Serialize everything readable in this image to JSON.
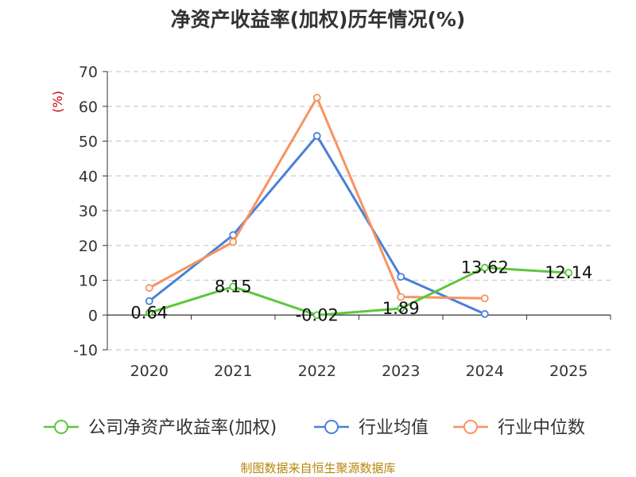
{
  "chart_data": {
    "type": "line",
    "title": "净资产收益率(加权)历年情况(%)",
    "ylabel": "(%)",
    "xlabel": "",
    "categories": [
      "2020",
      "2021",
      "2022",
      "2023",
      "2024",
      "2025"
    ],
    "ylim": [
      -10,
      70
    ],
    "yticks": [
      -10,
      0,
      10,
      20,
      30,
      40,
      50,
      60,
      70
    ],
    "grid": true,
    "legend_position": "bottom",
    "series": [
      {
        "name": "公司净资产收益率(加权)",
        "color": "#5cc73b",
        "values": [
          0.64,
          8.15,
          -0.02,
          1.89,
          13.62,
          12.14
        ],
        "labels": [
          "0.64",
          "8.15",
          "-0.02",
          "1.89",
          "13.62",
          "12.14"
        ]
      },
      {
        "name": "行业均值",
        "color": "#4a7fd9",
        "values": [
          4.0,
          23.0,
          51.5,
          11.0,
          0.3,
          null
        ]
      },
      {
        "name": "行业中位数",
        "color": "#f79460",
        "values": [
          7.8,
          21.0,
          62.5,
          5.2,
          4.8,
          null
        ]
      }
    ]
  },
  "footer": {
    "source": "制图数据来自恒生聚源数据库"
  }
}
